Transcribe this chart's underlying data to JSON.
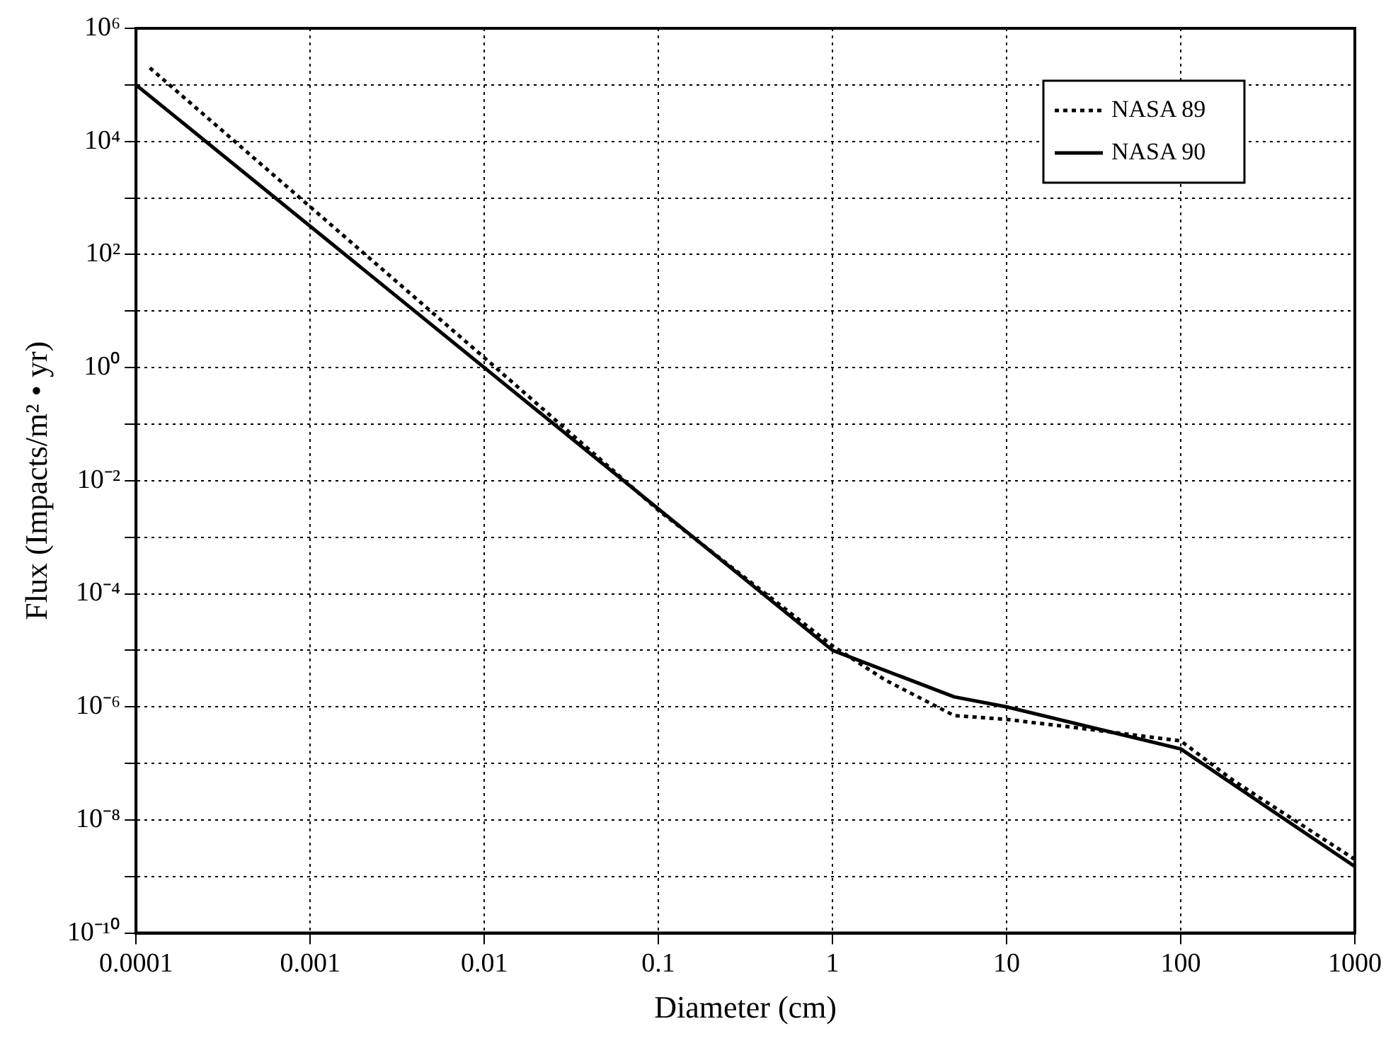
{
  "chart_data": {
    "type": "line",
    "xlabel": "Diameter (cm)",
    "ylabel": "Flux (Impacts/m² • yr)",
    "log": "xy",
    "grid": true,
    "legend": "top right",
    "marker": "none",
    "xlim": [
      0.0001,
      1000
    ],
    "xticks": [
      {
        "value": 0.0001,
        "label": "0.0001"
      },
      {
        "value": 0.001,
        "label": "0.001"
      },
      {
        "value": 0.01,
        "label": "0.01"
      },
      {
        "value": 0.1,
        "label": "0.1"
      },
      {
        "value": 1,
        "label": "1"
      },
      {
        "value": 10,
        "label": "10"
      },
      {
        "value": 100,
        "label": "100"
      },
      {
        "value": 1000,
        "label": "1000"
      }
    ],
    "ylim": [
      1e-10,
      1000000.0
    ],
    "yticks": [
      {
        "value": 1e-10,
        "label": "10⁻¹⁰"
      },
      {
        "value": 1e-09,
        "label": null
      },
      {
        "value": 1e-08,
        "label": "10⁻⁸"
      },
      {
        "value": 1e-07,
        "label": null
      },
      {
        "value": 1e-06,
        "label": "10⁻⁶"
      },
      {
        "value": 1e-05,
        "label": null
      },
      {
        "value": 0.0001,
        "label": "10⁻⁴"
      },
      {
        "value": 0.001,
        "label": null
      },
      {
        "value": 0.01,
        "label": "10⁻²"
      },
      {
        "value": 0.1,
        "label": null
      },
      {
        "value": 1,
        "label": "10⁰"
      },
      {
        "value": 10,
        "label": null
      },
      {
        "value": 100,
        "label": "10²"
      },
      {
        "value": 1000,
        "label": null
      },
      {
        "value": 10000,
        "label": "10⁴"
      },
      {
        "value": 100000,
        "label": null
      },
      {
        "value": 1000000,
        "label": "10⁶"
      }
    ],
    "series": [
      {
        "name": "NASA 89",
        "color": "#000000",
        "line_style": "dotted",
        "x": [
          0.00012,
          0.01,
          0.1,
          1,
          2,
          5,
          10,
          30,
          100,
          200,
          1000
        ],
        "values": [
          200000,
          1.5,
          0.003,
          1.2e-05,
          3e-06,
          7e-07,
          6e-07,
          4e-07,
          2.5e-07,
          5e-08,
          2e-09
        ]
      },
      {
        "name": "NASA 90",
        "color": "#000000",
        "line_style": "solid",
        "x": [
          0.0001,
          0.01,
          1,
          5,
          10,
          100,
          1000
        ],
        "values": [
          100000,
          1,
          1e-05,
          1.5e-06,
          1e-06,
          1.8e-07,
          1.5e-09
        ]
      }
    ]
  }
}
